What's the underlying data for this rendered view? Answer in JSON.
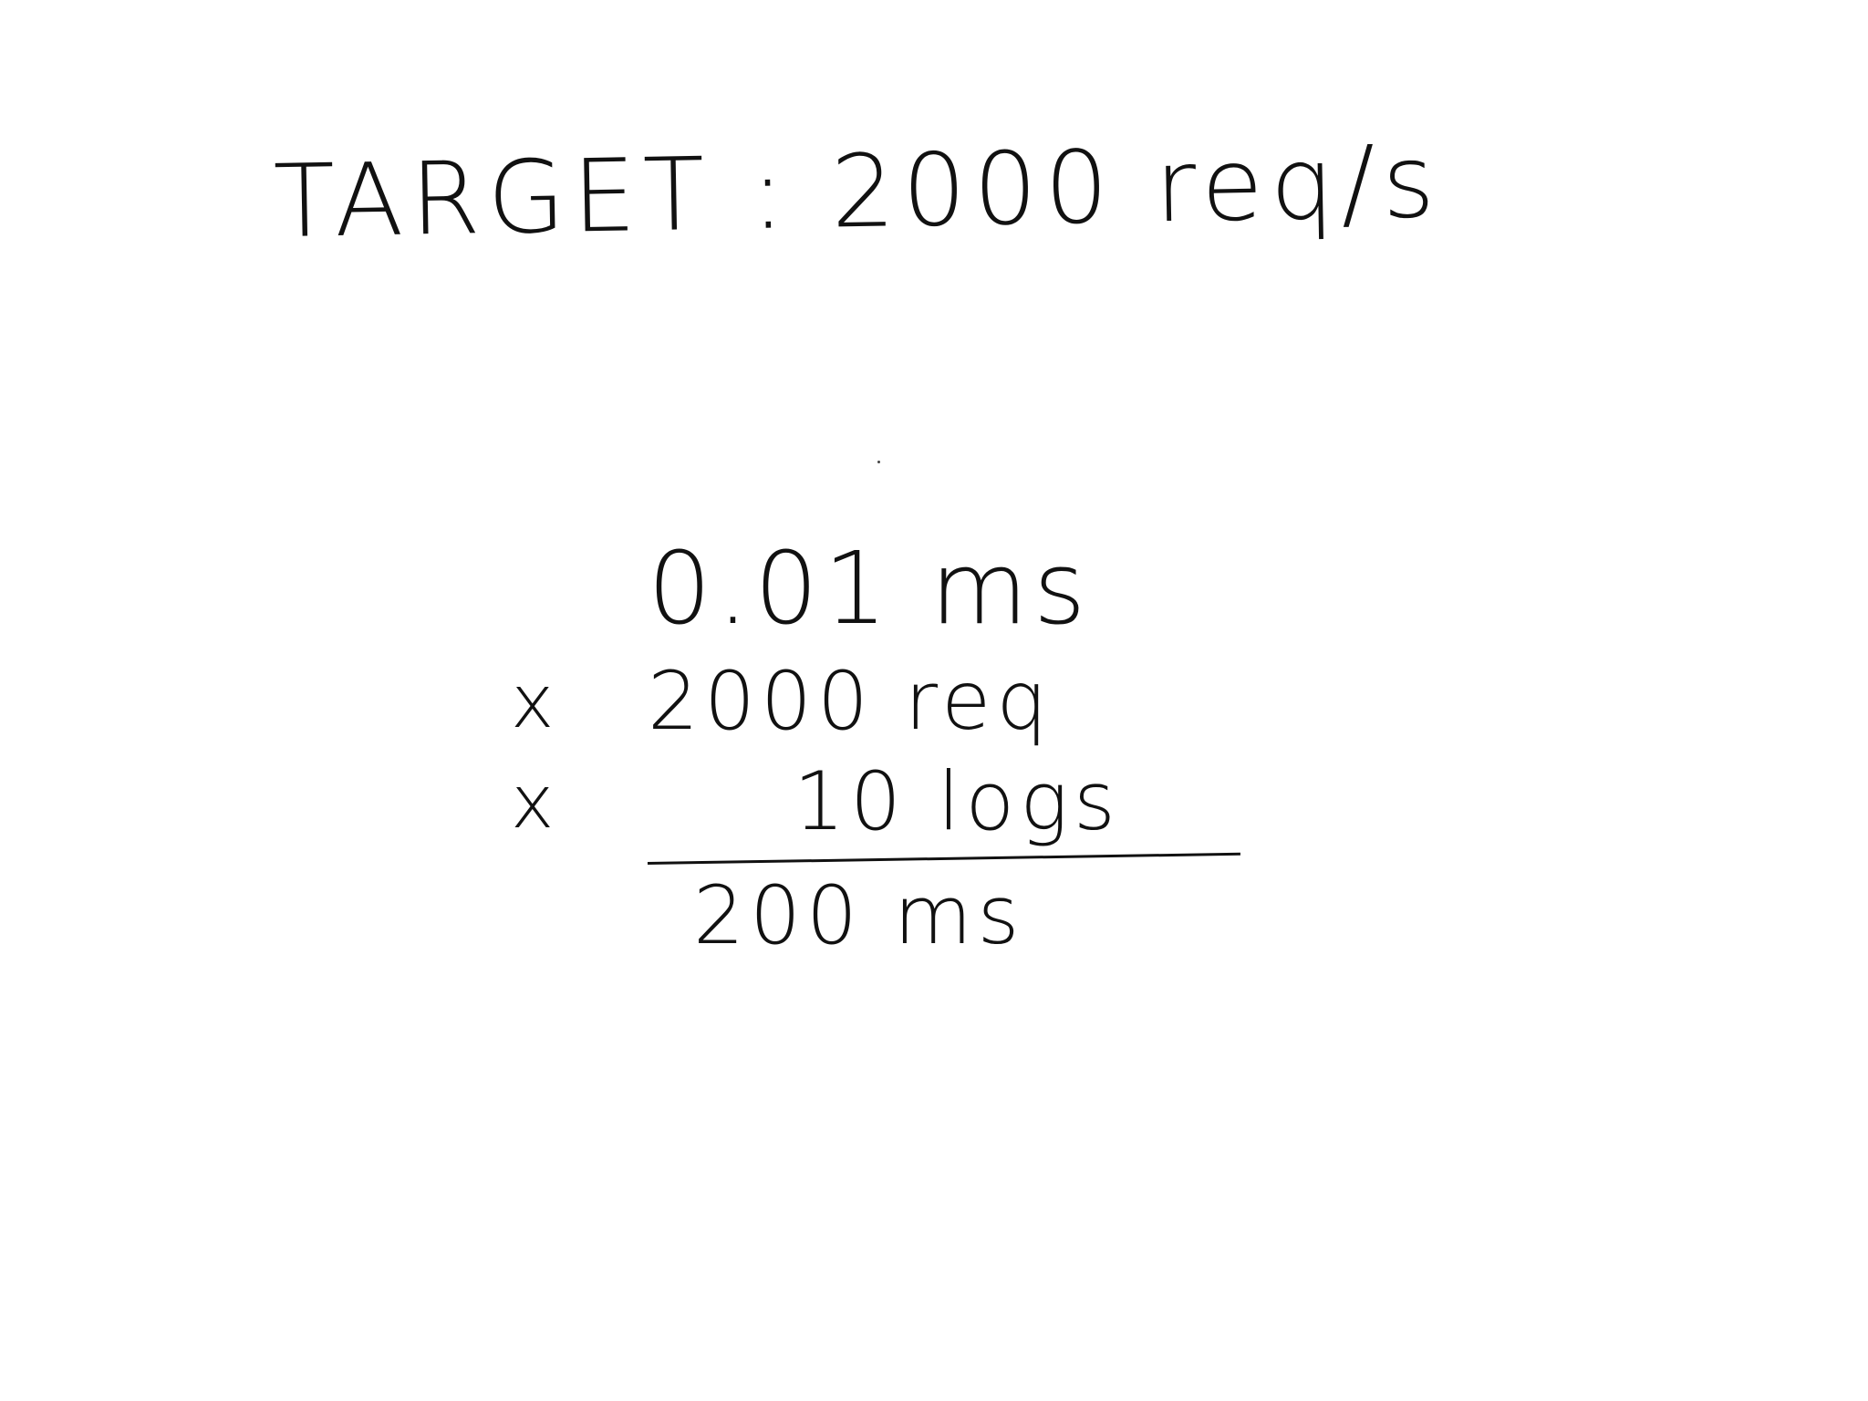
{
  "title": "TARGET : 2000 req/s",
  "calculation": {
    "line1": "0.01 ms",
    "line2_operator": "x",
    "line2": "2000 req",
    "line3_operator": "x",
    "line3": "10 logs",
    "result": "200 ms"
  }
}
